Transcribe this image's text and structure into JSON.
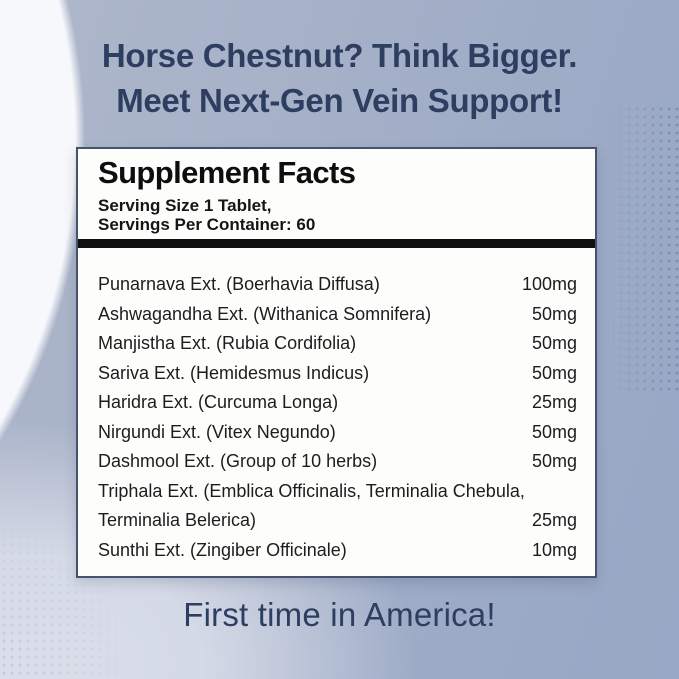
{
  "colors": {
    "brand_navy": "#2e3e61",
    "background_slate": "#9dabc6",
    "background_light": "#f7f8fb",
    "background_lavender": "#dde1ec",
    "panel_background": "#fdfdfc",
    "panel_border": "#45536e",
    "divider_bar": "#101010",
    "body_text": "#1d1d1d"
  },
  "header": {
    "line1": "Horse Chestnut? Think Bigger.",
    "line2": "Meet Next-Gen Vein Support!"
  },
  "panel": {
    "title": "Supplement Facts",
    "serving_line1": "Serving Size 1 Tablet,",
    "serving_line2": "Servings Per Container: 60",
    "rows": [
      {
        "name": "Punarnava Ext. (Boerhavia Diffusa)",
        "amount": "100mg"
      },
      {
        "name": "Ashwagandha Ext. (Withanica Somnifera)",
        "amount": "50mg"
      },
      {
        "name": "Manjistha Ext. (Rubia Cordifolia)",
        "amount": "50mg"
      },
      {
        "name": "Sariva Ext. (Hemidesmus Indicus)",
        "amount": "50mg"
      },
      {
        "name": "Haridra Ext. (Curcuma Longa)",
        "amount": "25mg"
      },
      {
        "name": "Nirgundi Ext. (Vitex Negundo)",
        "amount": "50mg"
      },
      {
        "name": "Dashmool Ext. (Group of 10 herbs)",
        "amount": "50mg"
      },
      {
        "name": "Triphala Ext. (Emblica Officinalis, Terminalia Chebula,",
        "amount": ""
      },
      {
        "name": "Terminalia Belerica)",
        "amount": "25mg"
      },
      {
        "name": "Sunthi Ext. (Zingiber Officinale)",
        "amount": "10mg"
      }
    ]
  },
  "footer": {
    "text": "First time in America!"
  }
}
